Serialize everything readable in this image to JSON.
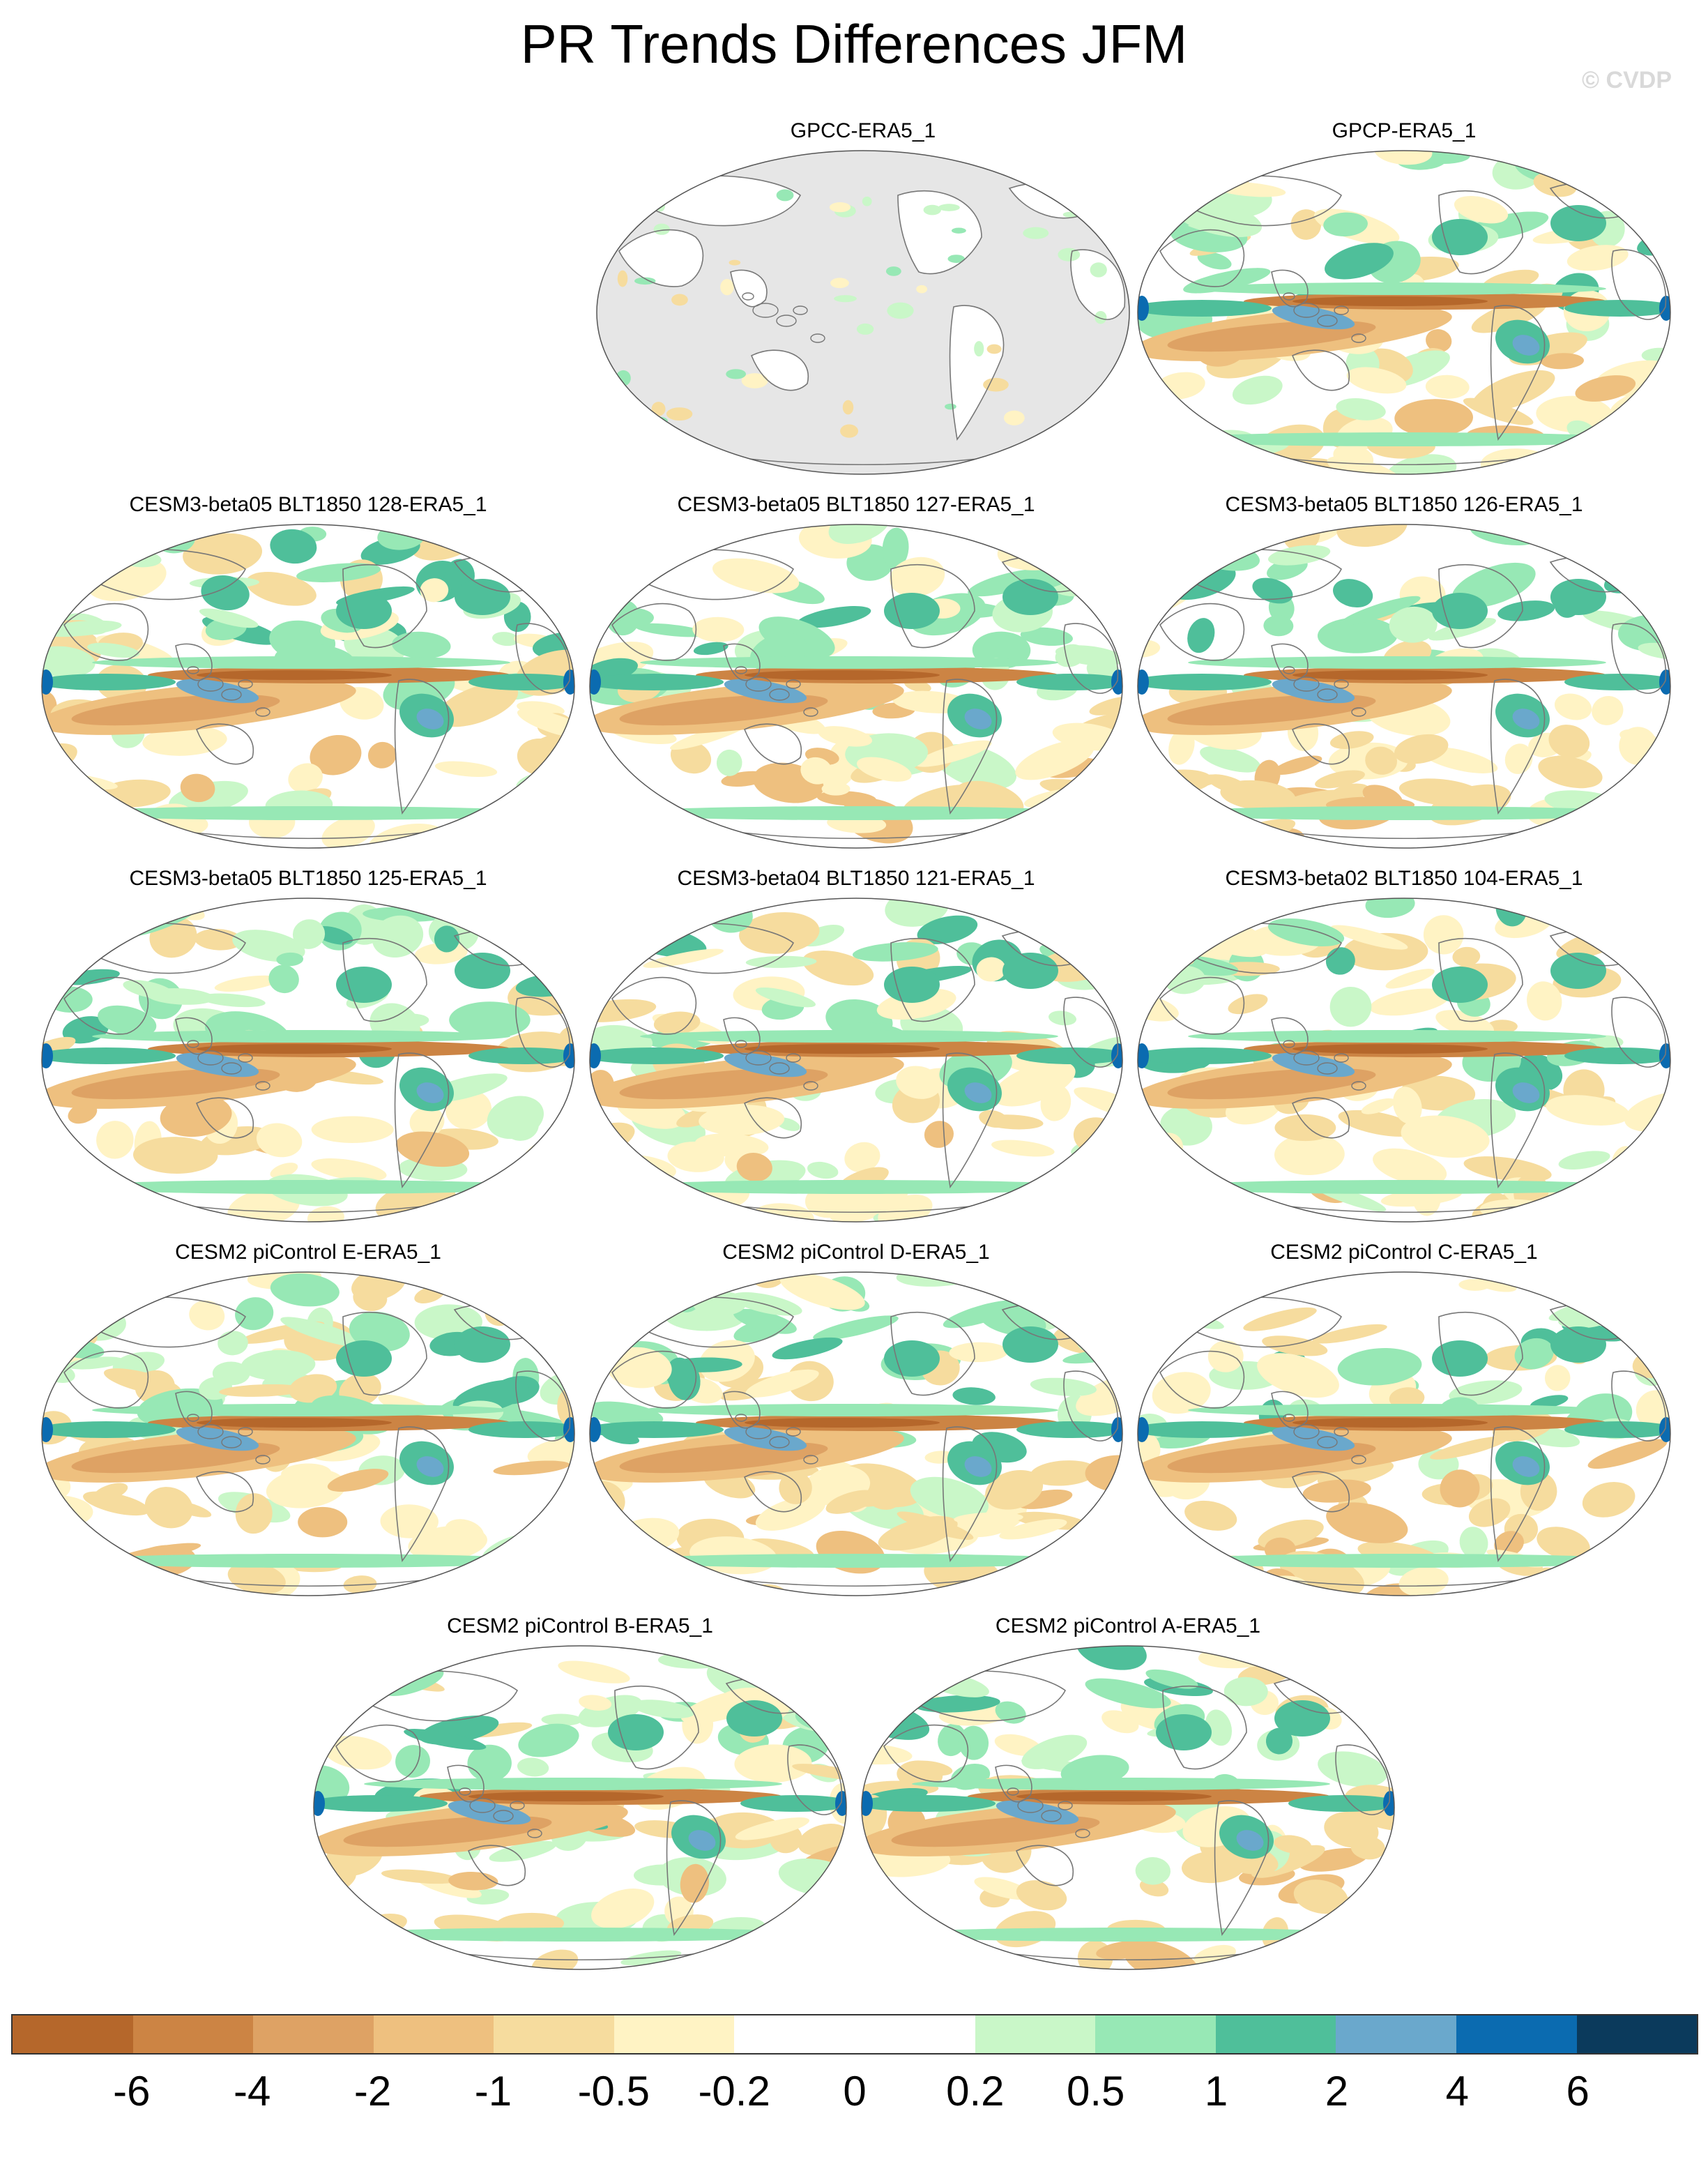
{
  "title": "PR Trends Differences JFM",
  "watermark": "© CVDP",
  "panels": [
    {
      "title": "GPCC-ERA5_1",
      "land_only": true
    },
    {
      "title": "GPCP-ERA5_1",
      "land_only": false
    },
    {
      "title": "CESM3-beta05 BLT1850 128-ERA5_1",
      "land_only": false
    },
    {
      "title": "CESM3-beta05 BLT1850 127-ERA5_1",
      "land_only": false
    },
    {
      "title": "CESM3-beta05 BLT1850 126-ERA5_1",
      "land_only": false
    },
    {
      "title": "CESM3-beta05 BLT1850 125-ERA5_1",
      "land_only": false
    },
    {
      "title": "CESM3-beta04 BLT1850 121-ERA5_1",
      "land_only": false
    },
    {
      "title": "CESM3-beta02 BLT1850 104-ERA5_1",
      "land_only": false
    },
    {
      "title": "CESM2 piControl E-ERA5_1",
      "land_only": false
    },
    {
      "title": "CESM2 piControl D-ERA5_1",
      "land_only": false
    },
    {
      "title": "CESM2 piControl C-ERA5_1",
      "land_only": false
    },
    {
      "title": "CESM2 piControl B-ERA5_1",
      "land_only": false
    },
    {
      "title": "CESM2 piControl A-ERA5_1",
      "land_only": false
    }
  ],
  "colorbar": {
    "colors": [
      "#b5672b",
      "#cc8444",
      "#dea264",
      "#eec07f",
      "#f6dc9e",
      "#fff3c4",
      "#ffffff",
      "#ffffff",
      "#c9f7c8",
      "#97e8b5",
      "#4fbf9a",
      "#6aa8cc",
      "#0b6bb0",
      "#0b3a5c"
    ],
    "labels": [
      "-6",
      "-4",
      "-2",
      "-1",
      "-0.5",
      "-0.2",
      "0",
      "0.2",
      "0.5",
      "1",
      "2",
      "4",
      "6"
    ]
  },
  "map_colors": {
    "land_mask": "#e6e6e6",
    "coast": "#777777"
  }
}
